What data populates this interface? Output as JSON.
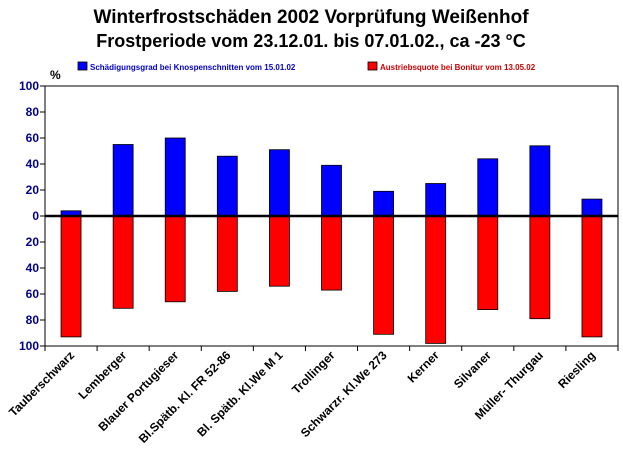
{
  "chart_data": {
    "type": "bar",
    "title": "Winterfrostschäden 2002 Vorprüfung Weißenhof",
    "subtitle": "Frostperiode vom 23.12.01. bis 07.01.02., ca -23 °C",
    "ylabel": "%",
    "ylim": [
      -100,
      100
    ],
    "y_ticks": [
      100,
      80,
      60,
      40,
      20,
      0,
      20,
      40,
      60,
      80,
      100
    ],
    "y_tick_values": [
      100,
      80,
      60,
      40,
      20,
      0,
      -20,
      -40,
      -60,
      -80,
      -100
    ],
    "categories": [
      "Tauberschwarz",
      "Lemberger",
      "Blauer Portugieser",
      "Bl.Spätb. Kl. FR 52-86",
      "Bl. Spätb. Kl.We M 1",
      "Trollinger",
      "Schwarzr. Kl.We 273",
      "Kerner",
      "Silvaner",
      "Müller- Thurgau",
      "Riesling"
    ],
    "series": [
      {
        "name": "Schädigungsgrad bei Knospenschnitten vom 15.01.02",
        "color": "#0000ff",
        "values": [
          4,
          55,
          60,
          46,
          51,
          39,
          19,
          25,
          44,
          54,
          13
        ]
      },
      {
        "name": "Austriebsquote bei Bonitur vom 13.05.02",
        "color": "#ff0000",
        "values": [
          -93,
          -71,
          -66,
          -58,
          -54,
          -57,
          -91,
          -98,
          -72,
          -79,
          -93
        ]
      }
    ],
    "grid": false,
    "legend_position": "top"
  },
  "colors": {
    "axis_text": "#00008b",
    "legend_text_1": "#0000cc",
    "legend_text_2": "#cc0000"
  }
}
